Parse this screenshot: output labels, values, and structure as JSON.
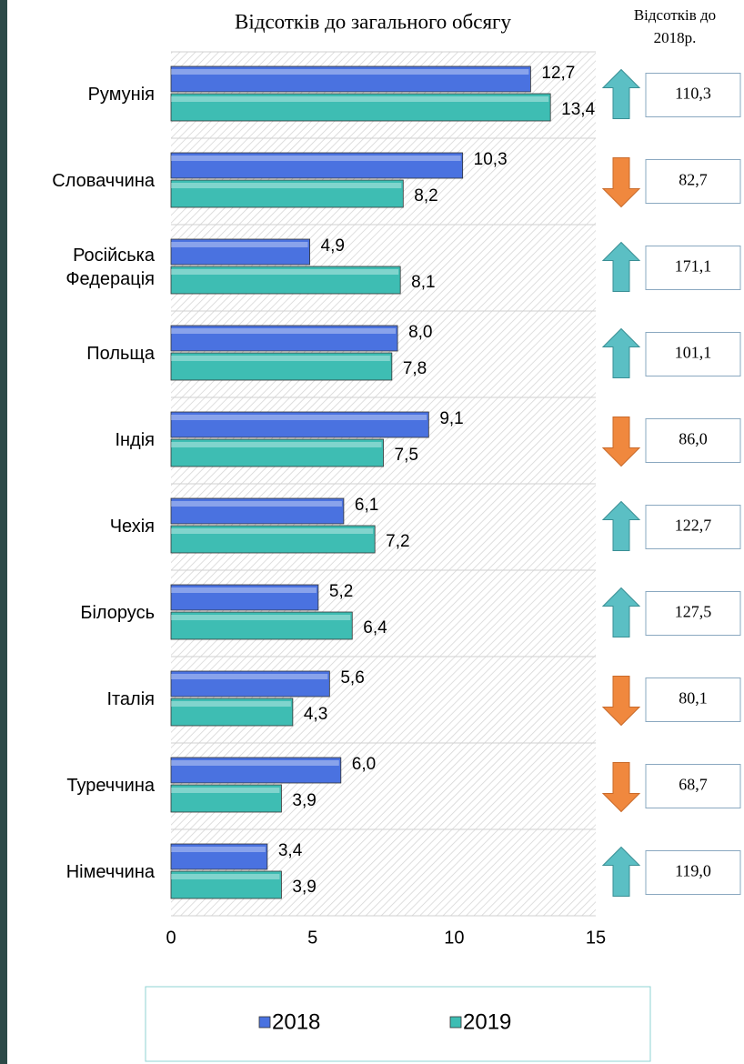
{
  "chart_data": {
    "type": "bar",
    "orientation": "horizontal",
    "title": "Відсотків до загального обсягу",
    "categories": [
      "Румунія",
      "Словаччина",
      [
        "Російська",
        "Федерація"
      ],
      "Польща",
      "Індія",
      "Чехія",
      "Білорусь",
      "Італія",
      "Туреччина",
      "Німеччина"
    ],
    "series": [
      {
        "name": "2018",
        "color": "#4a72e0",
        "values": [
          12.7,
          10.3,
          4.9,
          8.0,
          9.1,
          6.1,
          5.2,
          5.6,
          6.0,
          3.4
        ],
        "value_labels": [
          "12,7",
          "10,3",
          "4,9",
          "8,0",
          "9,1",
          "6,1",
          "5,2",
          "5,6",
          "6,0",
          "3,4"
        ]
      },
      {
        "name": "2019",
        "color": "#3ebdb3",
        "values": [
          13.4,
          8.2,
          8.1,
          7.8,
          7.5,
          7.2,
          6.4,
          4.3,
          3.9,
          3.9
        ],
        "value_labels": [
          "13,4",
          "8,2",
          "8,1",
          "7,8",
          "7,5",
          "7,2",
          "6,4",
          "4,3",
          "3,9",
          "3,9"
        ]
      }
    ],
    "xlim": [
      0,
      15
    ],
    "xticks": [
      0,
      5,
      10,
      15
    ],
    "legend": "bottom",
    "index": {
      "title": [
        "Відсотків до",
        "2018р."
      ],
      "values": [
        110.3,
        82.7,
        171.1,
        101.1,
        86.0,
        122.7,
        127.5,
        80.1,
        68.7,
        119.0
      ],
      "value_labels": [
        "110,3",
        "82,7",
        "171,1",
        "101,1",
        "86,0",
        "122,7",
        "127,5",
        "80,1",
        "68,7",
        "119,0"
      ],
      "arrows": [
        "up",
        "down",
        "up",
        "up",
        "down",
        "up",
        "up",
        "down",
        "down",
        "up"
      ],
      "arrow_colors": {
        "up": "#5bbfc4",
        "down": "#f0883e"
      }
    }
  }
}
